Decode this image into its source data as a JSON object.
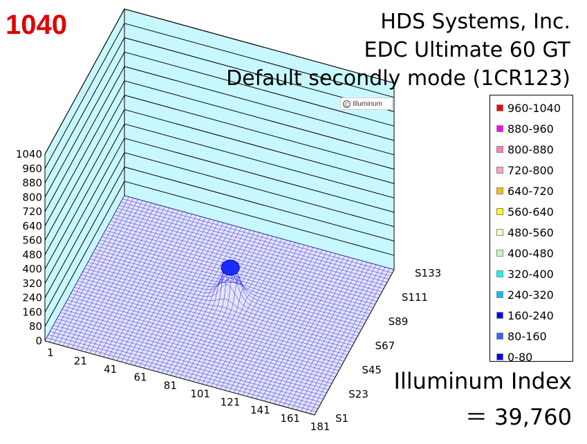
{
  "header": {
    "max_value": "1040",
    "title_line1": "HDS Systems, Inc.",
    "title_line2": "EDC Ultimate 60 GT",
    "title_line3": "Default secondly mode (1CR123)",
    "watermark": "Illuminum",
    "watermark_symbol": "C"
  },
  "index": {
    "label": "Illuminum Index",
    "value": "＝ 39,760"
  },
  "legend": [
    {
      "label": "960-1040",
      "color": "#ff0000"
    },
    {
      "label": "880-960",
      "color": "#ff00ff"
    },
    {
      "label": "800-880",
      "color": "#ff80c0"
    },
    {
      "label": "720-800",
      "color": "#ffa0c8"
    },
    {
      "label": "640-720",
      "color": "#ffc000"
    },
    {
      "label": "560-640",
      "color": "#ffff00"
    },
    {
      "label": "480-560",
      "color": "#ffffc0"
    },
    {
      "label": "400-480",
      "color": "#c0ffc0"
    },
    {
      "label": "320-400",
      "color": "#00ffff"
    },
    {
      "label": "240-320",
      "color": "#00c0ff"
    },
    {
      "label": "160-240",
      "color": "#0000ff"
    },
    {
      "label": "80-160",
      "color": "#4060ff"
    },
    {
      "label": "0-80",
      "color": "#0000ff"
    }
  ],
  "chart_data": {
    "type": "surface",
    "z_ticks": [
      "0",
      "80",
      "160",
      "240",
      "320",
      "400",
      "480",
      "560",
      "640",
      "720",
      "800",
      "880",
      "960",
      "1040"
    ],
    "zlim": [
      0,
      1040
    ],
    "x_ticks": [
      "1",
      "21",
      "41",
      "61",
      "81",
      "101",
      "121",
      "141",
      "161",
      "181"
    ],
    "y_ticks": [
      "S1",
      "S23",
      "S45",
      "S67",
      "S89",
      "S111",
      "S133"
    ],
    "x_range": [
      1,
      181
    ],
    "y_range": [
      1,
      133
    ],
    "peak": {
      "x": 95,
      "y": 75,
      "z": 200
    },
    "wall_color": "#c8f8ff",
    "mesh_color": "#0000ff"
  }
}
